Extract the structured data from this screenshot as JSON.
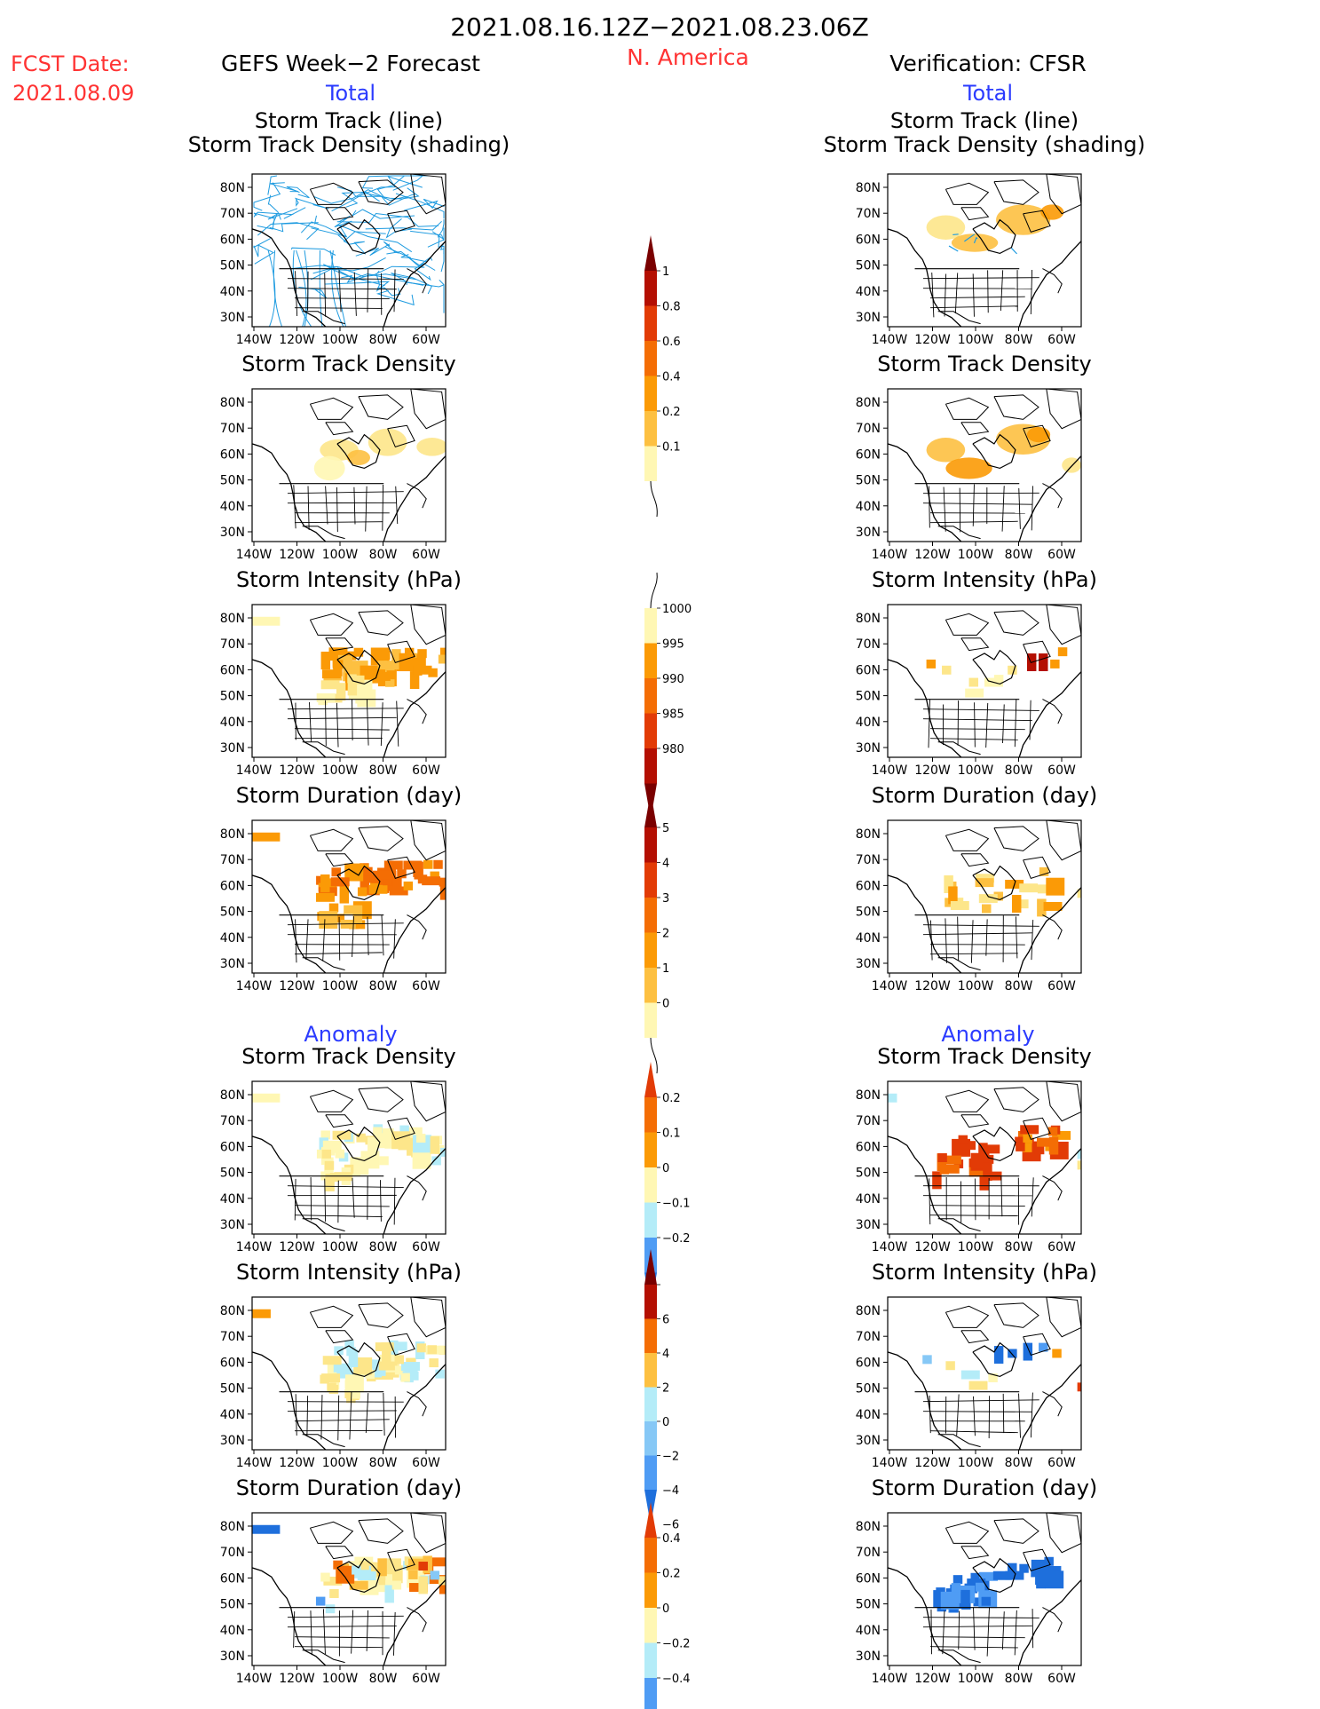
{
  "header": {
    "period": "2021.08.16.12Z−2021.08.23.06Z",
    "fcst_label": "FCST Date:",
    "fcst_date": "2021.08.09",
    "region": "N. America",
    "left_title": "GEFS Week−2 Forecast",
    "right_title": "Verification: CFSR",
    "total_label": "Total",
    "anomaly_label": "Anomaly"
  },
  "panel_titles": {
    "track_line": "Storm Track (line)",
    "track_shading": "Storm Track Density (shading)",
    "density": "Storm Track Density",
    "intensity": "Storm Intensity (hPa)",
    "duration": "Storm Duration (day)"
  },
  "axes": {
    "lat_labels": [
      "80N",
      "70N",
      "60N",
      "50N",
      "40N",
      "30N"
    ],
    "lon_labels": [
      "140W",
      "120W",
      "100W",
      "80W",
      "60W"
    ]
  },
  "colorbars": {
    "total_density": [
      "1",
      "0.8",
      "0.6",
      "0.4",
      "0.2",
      "0.1"
    ],
    "total_intensity": [
      "1000",
      "995",
      "990",
      "985",
      "980"
    ],
    "total_duration": [
      "5",
      "4",
      "3",
      "2",
      "1",
      "0"
    ],
    "anom_density": [
      "0.2",
      "0.1",
      "0",
      "−0.1",
      "−0.2"
    ],
    "anom_intensity": [
      "6",
      "4",
      "2",
      "0",
      "−2",
      "−4",
      "−6"
    ],
    "anom_duration": [
      "0.4",
      "0.2",
      "0",
      "−0.2",
      "−0.4"
    ]
  },
  "colors": {
    "title_red": "#ff3333",
    "title_blue": "#2b3bff",
    "track_blue": "#1e9be0",
    "warm": [
      "#fff7b4",
      "#fde68a",
      "#fdc041",
      "#fb9a06",
      "#f46d04",
      "#e23b06",
      "#b40f02",
      "#7a0000"
    ],
    "cool": [
      "#b4ecf8",
      "#86c8f6",
      "#4f9cf4",
      "#1e6fdc"
    ]
  }
}
